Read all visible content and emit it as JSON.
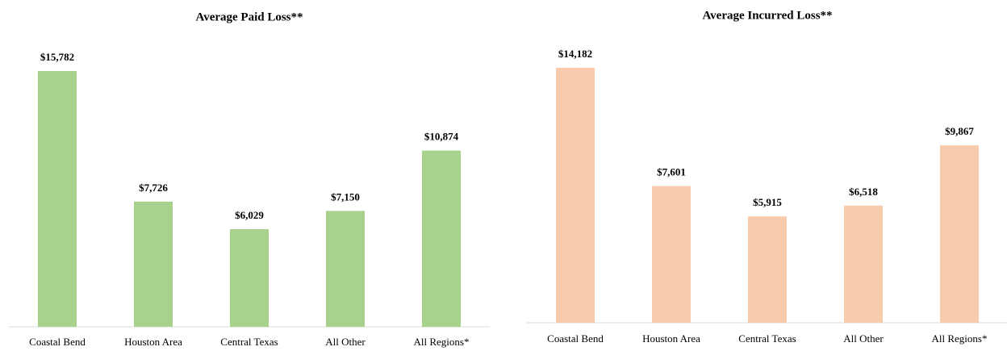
{
  "chart_data": [
    {
      "type": "bar",
      "title": "Average Paid Loss**",
      "categories": [
        "Coastal Bend",
        "Houston Area",
        "Central Texas",
        "All Other",
        "All Regions*"
      ],
      "values": [
        15782,
        7726,
        6029,
        7150,
        10874
      ],
      "value_labels": [
        "$15,782",
        "$7,726",
        "$6,029",
        "$7,150",
        "$10,874"
      ],
      "color": "#a9d18e"
    },
    {
      "type": "bar",
      "title": "Average Incurred Loss**",
      "categories": [
        "Coastal Bend",
        "Houston Area",
        "Central Texas",
        "All Other",
        "All Regions*"
      ],
      "values": [
        14182,
        7601,
        5915,
        6518,
        9867
      ],
      "value_labels": [
        "$14,182",
        "$7,601",
        "$5,915",
        "$6,518",
        "$9,867"
      ],
      "color": "#f8cbad"
    }
  ]
}
